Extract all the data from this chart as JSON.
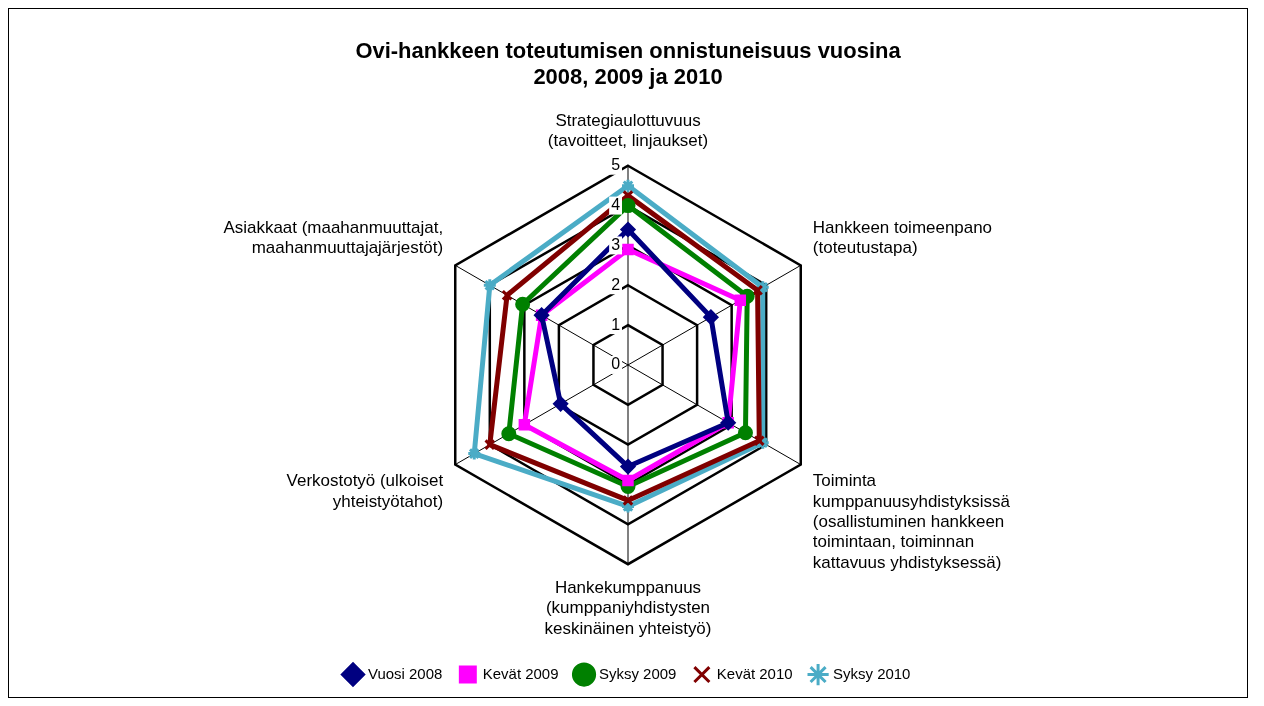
{
  "chart_data": {
    "type": "radar",
    "title": "Ovi-hankkeen toteutumisen onnistuneisuus vuosina 2008, 2009 ja 2010",
    "categories": [
      "Strategiaulottuvuus (tavoitteet, linjaukset)",
      "Hankkeen toimeenpano (toteutustapa)",
      "Toiminta kumppanuusyhdistyksissä (osallistuminen hankkeen toimintaan, toiminnan kattavuus yhdistyksessä)",
      "Hankekumppanuus (kumppaniyhdistysten keskinäinen yhteistyö)",
      "Verkostotyö (ulkoiset yhteistyötahot)",
      "Asiakkaat (maahanmuuttajat, maahanmuuttajajärjestöt)"
    ],
    "series": [
      {
        "name": "Vuosi 2008",
        "color": "#000080",
        "marker": "diamond",
        "values": [
          3.4,
          2.4,
          2.9,
          2.55,
          1.95,
          2.5
        ]
      },
      {
        "name": "Kevät 2009",
        "color": "#ff00ff",
        "marker": "square",
        "values": [
          2.9,
          3.25,
          2.9,
          2.9,
          3.0,
          2.5
        ]
      },
      {
        "name": "Syksy 2009",
        "color": "#008000",
        "marker": "circle",
        "values": [
          4.0,
          3.45,
          3.4,
          3.05,
          3.45,
          3.05
        ]
      },
      {
        "name": "Kevät 2010",
        "color": "#800000",
        "marker": "cross",
        "values": [
          4.25,
          3.75,
          3.8,
          3.4,
          4.0,
          3.5
        ]
      },
      {
        "name": "Syksy 2010",
        "color": "#4bacc6",
        "marker": "star",
        "values": [
          4.5,
          3.9,
          3.9,
          3.55,
          4.45,
          4.0
        ]
      }
    ],
    "ylim": [
      0,
      5
    ],
    "yticks": [
      0,
      1,
      2,
      3,
      4,
      5
    ],
    "grid": true,
    "legend": "bottom"
  }
}
